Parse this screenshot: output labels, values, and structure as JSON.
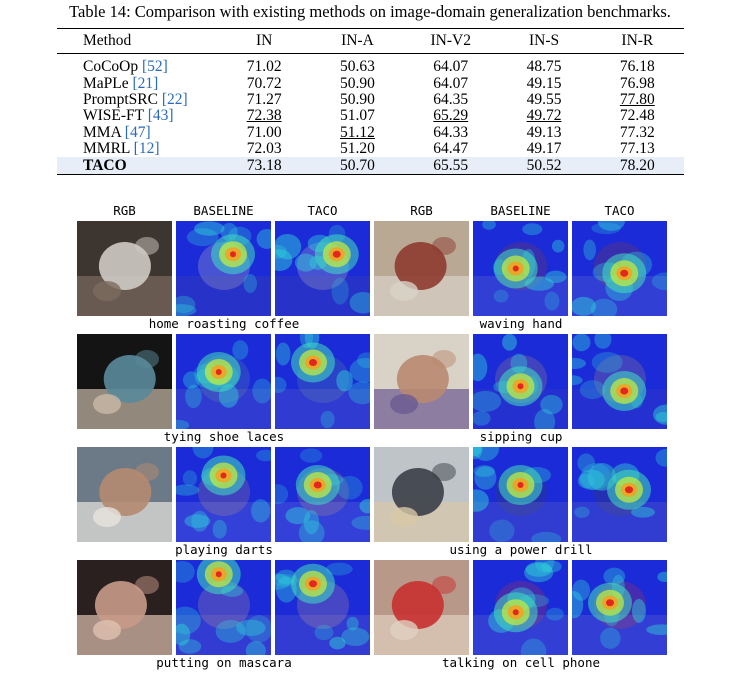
{
  "table": {
    "caption": "Table 14: Comparison with existing methods on image-domain generalization benchmarks.",
    "headers": [
      "Method",
      "IN",
      "IN-A",
      "IN-V2",
      "IN-S",
      "IN-R"
    ],
    "rows": [
      {
        "name": "CoCoOp",
        "cite": "[52]",
        "values": [
          "71.02",
          "50.63",
          "64.07",
          "48.75",
          "76.18"
        ],
        "bold": [],
        "underline": [],
        "highlight": false
      },
      {
        "name": "MaPLe",
        "cite": "[21]",
        "values": [
          "70.72",
          "50.90",
          "64.07",
          "49.15",
          "76.98"
        ],
        "bold": [],
        "underline": [],
        "highlight": false
      },
      {
        "name": "PromptSRC",
        "cite": "[22]",
        "values": [
          "71.27",
          "50.90",
          "64.35",
          "49.55",
          "77.80"
        ],
        "bold": [],
        "underline": [
          4
        ],
        "highlight": false
      },
      {
        "name": "WISE-FT",
        "cite": "[43]",
        "values": [
          "72.38",
          "51.07",
          "65.29",
          "49.72",
          "72.48"
        ],
        "bold": [],
        "underline": [
          0,
          2,
          3
        ],
        "highlight": false
      },
      {
        "name": "MMA",
        "cite": "[47]",
        "values": [
          "71.00",
          "51.12",
          "64.33",
          "49.13",
          "77.32"
        ],
        "bold": [],
        "underline": [
          1
        ],
        "highlight": false
      },
      {
        "name": "MMRL",
        "cite": "[12]",
        "values": [
          "72.03",
          "51.20",
          "64.47",
          "49.17",
          "77.13"
        ],
        "bold": [
          1
        ],
        "underline": [],
        "highlight": false
      },
      {
        "name": "TACO",
        "cite": "",
        "values": [
          "73.18",
          "50.70",
          "65.55",
          "50.52",
          "78.20"
        ],
        "bold": [
          0,
          2,
          3,
          4
        ],
        "underline": [],
        "highlight": true,
        "name_bold": true
      }
    ]
  },
  "figure": {
    "column_headers": [
      "RGB",
      "BASELINE",
      "TACO",
      "RGB",
      "BASELINE",
      "TACO"
    ],
    "rows": [
      {
        "left_label": "home roasting coffee",
        "right_label": "waving hand"
      },
      {
        "left_label": "tying shoe laces",
        "right_label": "sipping cup"
      },
      {
        "left_label": "playing darts",
        "right_label": "using a power drill"
      },
      {
        "left_label": "putting on mascara",
        "right_label": "talking on cell phone"
      }
    ]
  },
  "colors": {
    "highlight_row": "#e7eef8",
    "citation": "#2a6ab8",
    "heatmap_base": "#1b2bd8"
  }
}
